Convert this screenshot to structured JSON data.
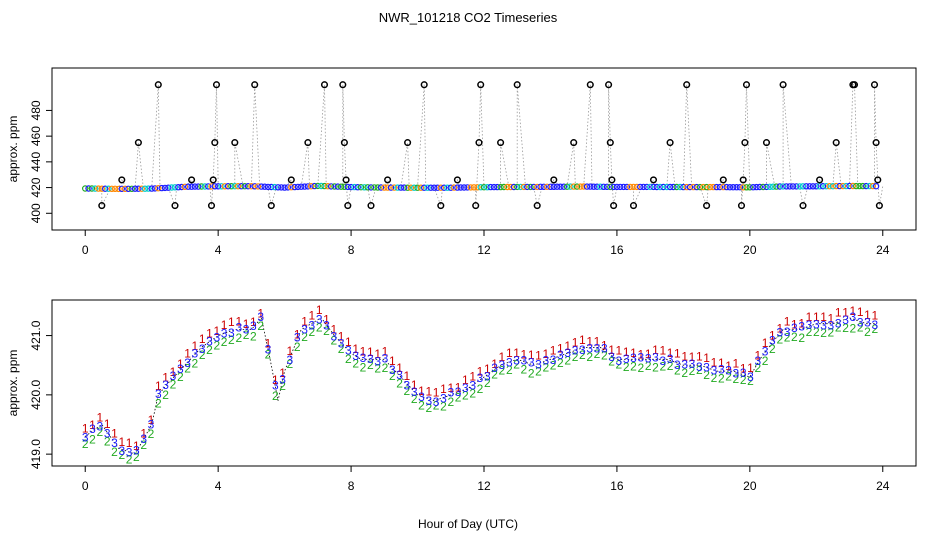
{
  "chart_data": {
    "type": "timeseries",
    "title": "NWR_101218  CO2 Timeseries",
    "xlabel": "Hour of Day (UTC)",
    "panels": [
      {
        "id": "top",
        "type": "scatter",
        "ylabel": "approx. ppm",
        "xlim": [
          -1,
          25
        ],
        "ylim": [
          387,
          513
        ],
        "xticks": [
          0,
          4,
          8,
          12,
          16,
          20,
          24
        ],
        "yticks": [
          400,
          420,
          440,
          460,
          480
        ],
        "description": "Per-second samples near 420 ppm with periodic reference spikes (black circles) joined by grey dotted lines.",
        "baseline_hours": [
          0.0,
          1.0,
          2.0,
          3.0,
          4.0,
          5.0,
          6.0,
          7.0,
          8.0,
          9.0,
          10.0,
          11.0,
          12.0,
          13.0,
          14.0,
          15.0,
          16.0,
          17.0,
          18.0,
          19.0,
          20.0,
          21.0,
          22.0,
          23.0,
          23.8
        ],
        "baseline_ppm": [
          419.3,
          419.0,
          419.2,
          420.6,
          421.0,
          421.1,
          420.0,
          421.3,
          420.4,
          420.0,
          419.9,
          419.9,
          420.3,
          420.5,
          420.6,
          420.8,
          420.5,
          420.5,
          420.4,
          420.4,
          420.2,
          420.9,
          421.0,
          421.2,
          421.1
        ],
        "spikes": [
          {
            "hour": 0.5,
            "ppm": 406
          },
          {
            "hour": 1.1,
            "ppm": 426
          },
          {
            "hour": 1.6,
            "ppm": 455
          },
          {
            "hour": 2.2,
            "ppm": 500
          },
          {
            "hour": 2.7,
            "ppm": 406
          },
          {
            "hour": 3.2,
            "ppm": 426
          },
          {
            "hour": 3.8,
            "ppm": 406
          },
          {
            "hour": 3.85,
            "ppm": 426
          },
          {
            "hour": 3.9,
            "ppm": 455
          },
          {
            "hour": 3.95,
            "ppm": 500
          },
          {
            "hour": 4.5,
            "ppm": 455
          },
          {
            "hour": 5.1,
            "ppm": 500
          },
          {
            "hour": 5.6,
            "ppm": 406
          },
          {
            "hour": 6.2,
            "ppm": 426
          },
          {
            "hour": 6.7,
            "ppm": 455
          },
          {
            "hour": 7.2,
            "ppm": 500
          },
          {
            "hour": 7.75,
            "ppm": 500
          },
          {
            "hour": 7.8,
            "ppm": 455
          },
          {
            "hour": 7.85,
            "ppm": 426
          },
          {
            "hour": 7.9,
            "ppm": 406
          },
          {
            "hour": 8.6,
            "ppm": 406
          },
          {
            "hour": 9.1,
            "ppm": 426
          },
          {
            "hour": 9.7,
            "ppm": 455
          },
          {
            "hour": 10.2,
            "ppm": 500
          },
          {
            "hour": 10.7,
            "ppm": 406
          },
          {
            "hour": 11.2,
            "ppm": 426
          },
          {
            "hour": 11.75,
            "ppm": 406
          },
          {
            "hour": 11.85,
            "ppm": 455
          },
          {
            "hour": 11.9,
            "ppm": 500
          },
          {
            "hour": 12.5,
            "ppm": 455
          },
          {
            "hour": 13.0,
            "ppm": 500
          },
          {
            "hour": 13.6,
            "ppm": 406
          },
          {
            "hour": 14.1,
            "ppm": 426
          },
          {
            "hour": 14.7,
            "ppm": 455
          },
          {
            "hour": 15.2,
            "ppm": 500
          },
          {
            "hour": 15.75,
            "ppm": 500
          },
          {
            "hour": 15.8,
            "ppm": 455
          },
          {
            "hour": 15.85,
            "ppm": 426
          },
          {
            "hour": 15.9,
            "ppm": 406
          },
          {
            "hour": 16.5,
            "ppm": 406
          },
          {
            "hour": 17.1,
            "ppm": 426
          },
          {
            "hour": 17.6,
            "ppm": 455
          },
          {
            "hour": 18.1,
            "ppm": 500
          },
          {
            "hour": 18.7,
            "ppm": 406
          },
          {
            "hour": 19.2,
            "ppm": 426
          },
          {
            "hour": 19.75,
            "ppm": 406
          },
          {
            "hour": 19.8,
            "ppm": 426
          },
          {
            "hour": 19.85,
            "ppm": 455
          },
          {
            "hour": 19.9,
            "ppm": 500
          },
          {
            "hour": 20.5,
            "ppm": 455
          },
          {
            "hour": 21.0,
            "ppm": 500
          },
          {
            "hour": 21.6,
            "ppm": 406
          },
          {
            "hour": 22.1,
            "ppm": 426
          },
          {
            "hour": 22.6,
            "ppm": 455
          },
          {
            "hour": 23.1,
            "ppm": 500
          },
          {
            "hour": 23.15,
            "ppm": 500
          },
          {
            "hour": 23.75,
            "ppm": 500
          },
          {
            "hour": 23.8,
            "ppm": 455
          },
          {
            "hour": 23.85,
            "ppm": 426
          },
          {
            "hour": 23.9,
            "ppm": 406
          }
        ]
      },
      {
        "id": "bottom",
        "type": "line",
        "ylabel": "approx. ppm",
        "xlim": [
          -1,
          25
        ],
        "ylim": [
          418.8,
          421.6
        ],
        "xticks": [
          0,
          4,
          8,
          12,
          16,
          20,
          24
        ],
        "yticks": [
          419.0,
          420.0,
          421.0
        ],
        "series": [
          {
            "name": "1",
            "color": "#cc0000",
            "offset": 0.12
          },
          {
            "name": "2",
            "color": "#22aa22",
            "offset": -0.12
          },
          {
            "name": "3",
            "color": "#1a1aff",
            "offset": 0.0
          }
        ],
        "hours": [
          0.0,
          0.5,
          1.0,
          1.5,
          2.0,
          2.2,
          2.5,
          3.0,
          3.5,
          4.0,
          4.5,
          5.0,
          5.3,
          5.6,
          5.8,
          6.0,
          6.5,
          6.8,
          7.1,
          7.5,
          8.0,
          8.3,
          8.6,
          9.0,
          9.5,
          10.0,
          10.5,
          11.0,
          11.5,
          12.0,
          12.5,
          13.0,
          13.5,
          14.0,
          14.5,
          15.0,
          15.5,
          16.0,
          16.5,
          17.0,
          17.5,
          18.0,
          18.5,
          19.0,
          19.5,
          20.0,
          20.3,
          20.7,
          21.0,
          21.5,
          22.0,
          22.5,
          23.0,
          23.5,
          23.8
        ],
        "values": [
          419.3,
          419.5,
          419.1,
          419.0,
          419.5,
          420.0,
          420.2,
          420.5,
          420.8,
          421.0,
          421.1,
          421.1,
          421.3,
          420.5,
          419.9,
          420.4,
          421.1,
          421.2,
          421.3,
          421.0,
          420.7,
          420.6,
          420.6,
          420.6,
          420.3,
          420.0,
          419.9,
          420.0,
          420.1,
          420.3,
          420.5,
          420.6,
          420.5,
          420.6,
          420.7,
          420.8,
          420.8,
          420.6,
          420.6,
          420.6,
          420.6,
          420.5,
          420.5,
          420.4,
          420.4,
          420.3,
          420.6,
          420.9,
          421.1,
          421.1,
          421.2,
          421.2,
          421.3,
          421.2,
          421.2
        ]
      }
    ]
  }
}
